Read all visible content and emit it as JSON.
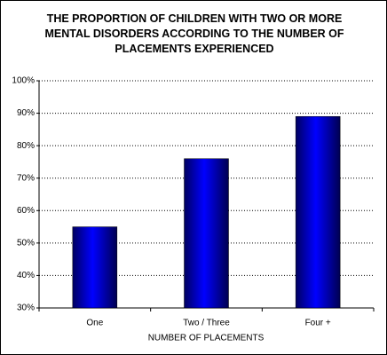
{
  "chart_data": {
    "type": "bar",
    "title": "THE PROPORTION OF CHILDREN WITH TWO OR MORE MENTAL DISORDERS ACCORDING TO THE NUMBER OF PLACEMENTS EXPERIENCED",
    "x_label": "NUMBER OF PLACEMENTS",
    "categories": [
      "One",
      "Two / Three",
      "Four +"
    ],
    "values": [
      55,
      76,
      89
    ],
    "color": "#0000ff",
    "ylim": [
      30,
      100
    ],
    "yticks": [
      {
        "value": 30,
        "label": "30%"
      },
      {
        "value": 40,
        "label": "40%"
      },
      {
        "value": 50,
        "label": "50%"
      },
      {
        "value": 60,
        "label": "60%"
      },
      {
        "value": 70,
        "label": "70%"
      },
      {
        "value": 80,
        "label": "80%"
      },
      {
        "value": 90,
        "label": "90%"
      },
      {
        "value": 100,
        "label": "100%"
      }
    ],
    "grid": true
  }
}
